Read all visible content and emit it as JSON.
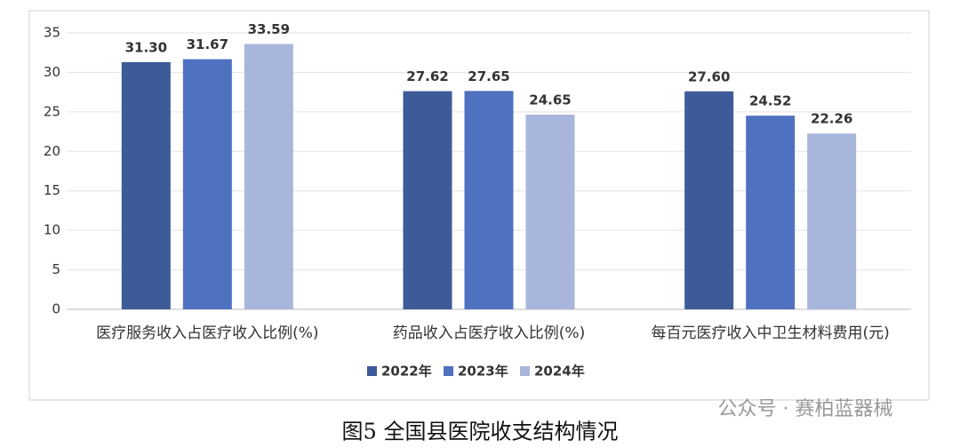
{
  "chart_data": {
    "type": "bar",
    "categories": [
      "医疗服务收入占医疗收入比例(%)",
      "药品收入占医疗收入比例(%)",
      "每百元医疗收入中卫生材料费用(元)"
    ],
    "series": [
      {
        "name": "2022年",
        "color": "#3d5a99",
        "values": [
          31.3,
          27.62,
          27.6
        ],
        "value_labels": [
          "31.30",
          "27.62",
          "27.60"
        ]
      },
      {
        "name": "2023年",
        "color": "#4f72c0",
        "values": [
          31.67,
          27.65,
          24.52
        ],
        "value_labels": [
          "31.67",
          "27.65",
          "24.52"
        ]
      },
      {
        "name": "2024年",
        "color": "#a9b6db",
        "values": [
          33.59,
          24.65,
          22.26
        ],
        "value_labels": [
          "33.59",
          "24.65",
          "22.26"
        ]
      }
    ],
    "ylim": [
      0,
      35
    ],
    "yticks": [
      0,
      5,
      10,
      15,
      20,
      25,
      30,
      35
    ],
    "grid": true,
    "legend": "bottom"
  },
  "caption": "图5  全国县医院收支结构情况",
  "watermark": "公众号 · 赛柏蓝器械"
}
